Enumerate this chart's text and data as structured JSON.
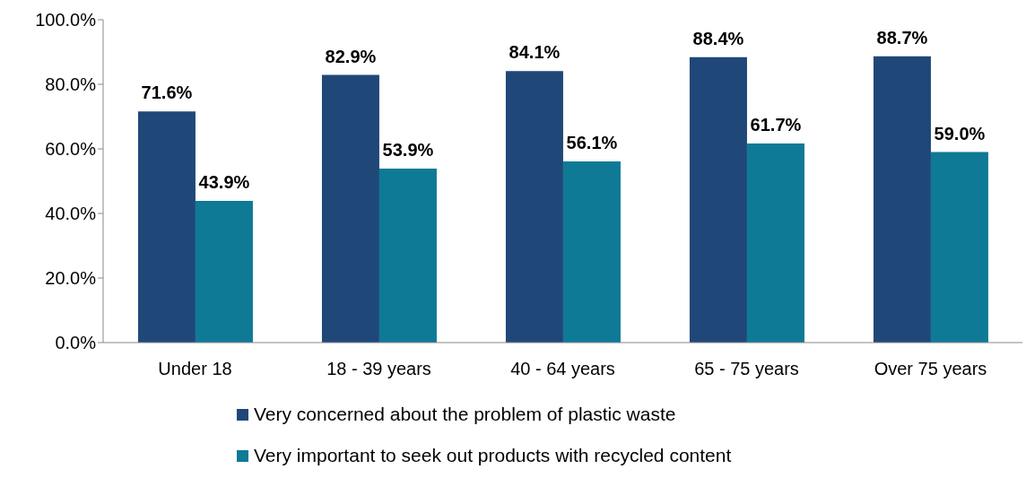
{
  "chart_data": {
    "type": "bar",
    "categories": [
      "Under 18",
      "18 - 39 years",
      "40 - 64 years",
      "65 - 75 years",
      "Over 75 years"
    ],
    "series": [
      {
        "name": "Very concerned about the problem of plastic waste",
        "color": "#1f4878",
        "values": [
          71.6,
          82.9,
          84.1,
          88.4,
          88.7
        ],
        "value_labels": [
          "71.6%",
          "82.9%",
          "84.1%",
          "88.4%",
          "88.7%"
        ]
      },
      {
        "name": "Very important to seek out products with recycled content",
        "color": "#0e7a96",
        "values": [
          43.9,
          53.9,
          56.1,
          61.7,
          59.0
        ],
        "value_labels": [
          "43.9%",
          "53.9%",
          "56.1%",
          "61.7%",
          "59.0%"
        ]
      }
    ],
    "ylim": [
      0,
      100
    ],
    "yticks": [
      {
        "value": 0,
        "label": "0.0%"
      },
      {
        "value": 20,
        "label": "20.0%"
      },
      {
        "value": 40,
        "label": "40.0%"
      },
      {
        "value": 60,
        "label": "60.0%"
      },
      {
        "value": 80,
        "label": "80.0%"
      },
      {
        "value": 100,
        "label": "100.0%"
      }
    ],
    "grid": false,
    "legend": "bottom"
  }
}
